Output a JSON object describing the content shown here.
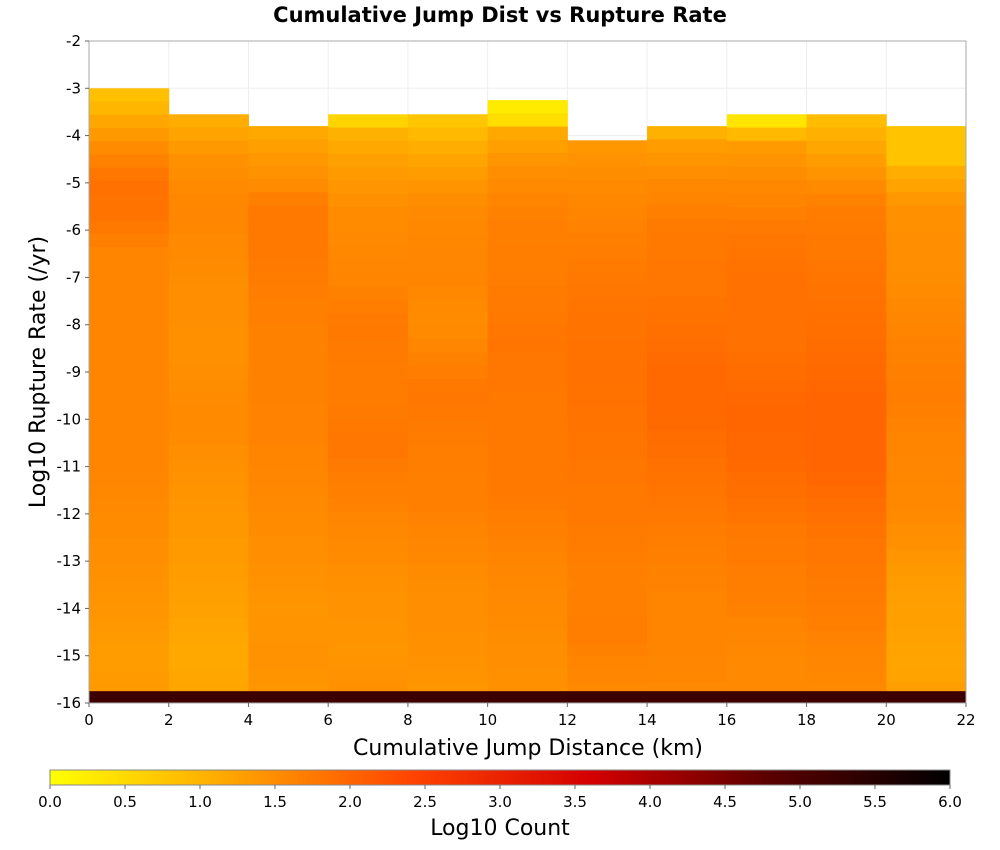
{
  "chart_data": {
    "type": "heatmap",
    "title": "Cumulative Jump Dist vs Rupture Rate",
    "xlabel": "Cumulative Jump Distance (km)",
    "ylabel": "Log10 Rupture Rate (/yr)",
    "xlim": [
      0,
      22
    ],
    "ylim": [
      -16,
      -2
    ],
    "x_ticks": [
      "0",
      "2",
      "4",
      "6",
      "8",
      "10",
      "12",
      "14",
      "16",
      "18",
      "20",
      "22"
    ],
    "y_ticks": [
      "-2",
      "-3",
      "-4",
      "-5",
      "-6",
      "-7",
      "-8",
      "-9",
      "-10",
      "-11",
      "-12",
      "-13",
      "-14",
      "-15",
      "-16"
    ],
    "x_bin_width": 2,
    "y_bin_height": 0.28,
    "grid": true,
    "colorbar": {
      "label": "Log10 Count",
      "range": [
        0,
        6
      ],
      "ticks": [
        "0.0",
        "0.5",
        "1.0",
        "1.5",
        "2.0",
        "2.5",
        "3.0",
        "3.5",
        "4.0",
        "4.5",
        "5.0",
        "5.5",
        "6.0"
      ],
      "colors": [
        "#ffff00",
        "#ffa500",
        "#ff4500",
        "#d40000",
        "#5a0000",
        "#000000"
      ]
    },
    "columns": [
      {
        "x_start": 0,
        "top": -3.0,
        "profile": [
          [
            -3.0,
            0.8
          ],
          [
            -3.3,
            0.9
          ],
          [
            -3.6,
            1.1
          ],
          [
            -4.2,
            1.5
          ],
          [
            -5.0,
            1.85
          ],
          [
            -5.8,
            1.8
          ],
          [
            -6.5,
            1.6
          ],
          [
            -8.0,
            1.6
          ],
          [
            -9.5,
            1.6
          ],
          [
            -11.0,
            1.6
          ],
          [
            -12.5,
            1.5
          ],
          [
            -14.0,
            1.4
          ],
          [
            -15.0,
            1.3
          ],
          [
            -15.7,
            1.35
          ]
        ]
      },
      {
        "x_start": 2,
        "top": -3.55,
        "profile": [
          [
            -3.55,
            1.0
          ],
          [
            -3.9,
            1.2
          ],
          [
            -4.5,
            1.45
          ],
          [
            -5.5,
            1.6
          ],
          [
            -7.0,
            1.5
          ],
          [
            -8.5,
            1.45
          ],
          [
            -10.0,
            1.55
          ],
          [
            -11.0,
            1.45
          ],
          [
            -12.5,
            1.35
          ],
          [
            -14.0,
            1.25
          ],
          [
            -15.0,
            1.15
          ],
          [
            -15.7,
            1.2
          ]
        ]
      },
      {
        "x_start": 4,
        "top": -3.8,
        "profile": [
          [
            -3.8,
            1.1
          ],
          [
            -4.3,
            1.3
          ],
          [
            -5.0,
            1.5
          ],
          [
            -5.5,
            1.75
          ],
          [
            -6.5,
            1.75
          ],
          [
            -8.0,
            1.65
          ],
          [
            -9.5,
            1.65
          ],
          [
            -11.0,
            1.6
          ],
          [
            -12.5,
            1.5
          ],
          [
            -14.0,
            1.4
          ],
          [
            -15.0,
            1.45
          ],
          [
            -15.7,
            1.4
          ]
        ]
      },
      {
        "x_start": 6,
        "top": -3.55,
        "profile": [
          [
            -3.55,
            0.2
          ],
          [
            -3.85,
            1.0
          ],
          [
            -4.5,
            1.25
          ],
          [
            -5.5,
            1.5
          ],
          [
            -7.0,
            1.6
          ],
          [
            -8.0,
            1.75
          ],
          [
            -9.5,
            1.7
          ],
          [
            -10.5,
            1.8
          ],
          [
            -12.0,
            1.6
          ],
          [
            -13.5,
            1.45
          ],
          [
            -15.0,
            1.4
          ],
          [
            -15.7,
            1.45
          ]
        ]
      },
      {
        "x_start": 8,
        "top": -3.55,
        "profile": [
          [
            -3.55,
            0.7
          ],
          [
            -3.9,
            0.9
          ],
          [
            -4.5,
            1.2
          ],
          [
            -5.5,
            1.55
          ],
          [
            -7.0,
            1.6
          ],
          [
            -8.0,
            1.5
          ],
          [
            -9.5,
            1.8
          ],
          [
            -10.5,
            1.7
          ],
          [
            -12.0,
            1.65
          ],
          [
            -13.5,
            1.5
          ],
          [
            -15.0,
            1.45
          ],
          [
            -15.7,
            1.4
          ]
        ]
      },
      {
        "x_start": 10,
        "top": -3.25,
        "profile": [
          [
            -3.25,
            0.5
          ],
          [
            -3.55,
            0.0
          ],
          [
            -3.85,
            1.1
          ],
          [
            -4.5,
            1.4
          ],
          [
            -5.5,
            1.65
          ],
          [
            -7.0,
            1.7
          ],
          [
            -8.5,
            1.8
          ],
          [
            -10.0,
            1.75
          ],
          [
            -11.5,
            1.75
          ],
          [
            -13.0,
            1.6
          ],
          [
            -14.5,
            1.5
          ],
          [
            -15.7,
            1.45
          ]
        ]
      },
      {
        "x_start": 12,
        "top": -4.1,
        "profile": [
          [
            -4.1,
            1.35
          ],
          [
            -4.8,
            1.5
          ],
          [
            -6.0,
            1.65
          ],
          [
            -7.5,
            1.8
          ],
          [
            -9.0,
            1.85
          ],
          [
            -10.5,
            1.8
          ],
          [
            -12.0,
            1.75
          ],
          [
            -13.5,
            1.65
          ],
          [
            -14.5,
            1.7
          ],
          [
            -15.7,
            1.55
          ]
        ]
      },
      {
        "x_start": 14,
        "top": -3.8,
        "profile": [
          [
            -3.8,
            0.9
          ],
          [
            -4.2,
            1.3
          ],
          [
            -5.0,
            1.55
          ],
          [
            -6.0,
            1.75
          ],
          [
            -7.5,
            1.8
          ],
          [
            -9.0,
            1.95
          ],
          [
            -10.0,
            1.95
          ],
          [
            -11.0,
            1.85
          ],
          [
            -12.5,
            1.7
          ],
          [
            -14.0,
            1.6
          ],
          [
            -15.0,
            1.6
          ],
          [
            -15.7,
            1.55
          ]
        ]
      },
      {
        "x_start": 16,
        "top": -3.55,
        "profile": [
          [
            -3.55,
            0.05
          ],
          [
            -4.15,
            1.3
          ],
          [
            -4.8,
            1.5
          ],
          [
            -6.0,
            1.75
          ],
          [
            -7.0,
            1.85
          ],
          [
            -8.5,
            1.85
          ],
          [
            -10.0,
            2.0
          ],
          [
            -11.0,
            1.95
          ],
          [
            -12.5,
            1.75
          ],
          [
            -14.0,
            1.65
          ],
          [
            -15.0,
            1.55
          ],
          [
            -15.7,
            1.55
          ]
        ]
      },
      {
        "x_start": 18,
        "top": -3.55,
        "profile": [
          [
            -3.55,
            0.8
          ],
          [
            -3.85,
            1.0
          ],
          [
            -4.5,
            1.3
          ],
          [
            -5.5,
            1.7
          ],
          [
            -7.0,
            1.8
          ],
          [
            -8.5,
            1.9
          ],
          [
            -9.5,
            2.0
          ],
          [
            -11.0,
            2.0
          ],
          [
            -12.5,
            1.8
          ],
          [
            -14.0,
            1.7
          ],
          [
            -15.0,
            1.6
          ],
          [
            -15.7,
            1.55
          ]
        ]
      },
      {
        "x_start": 20,
        "top": -3.8,
        "profile": [
          [
            -3.8,
            0.8
          ],
          [
            -4.5,
            0.8
          ],
          [
            -4.8,
            1.1
          ],
          [
            -5.5,
            1.45
          ],
          [
            -7.0,
            1.5
          ],
          [
            -8.0,
            1.6
          ],
          [
            -9.5,
            1.7
          ],
          [
            -10.5,
            1.6
          ],
          [
            -12.0,
            1.55
          ],
          [
            -13.5,
            1.3
          ],
          [
            -14.5,
            1.25
          ],
          [
            -15.3,
            1.2
          ],
          [
            -15.7,
            1.3
          ]
        ]
      }
    ],
    "bottom_row": {
      "y": -15.95,
      "value": 5.2
    }
  }
}
